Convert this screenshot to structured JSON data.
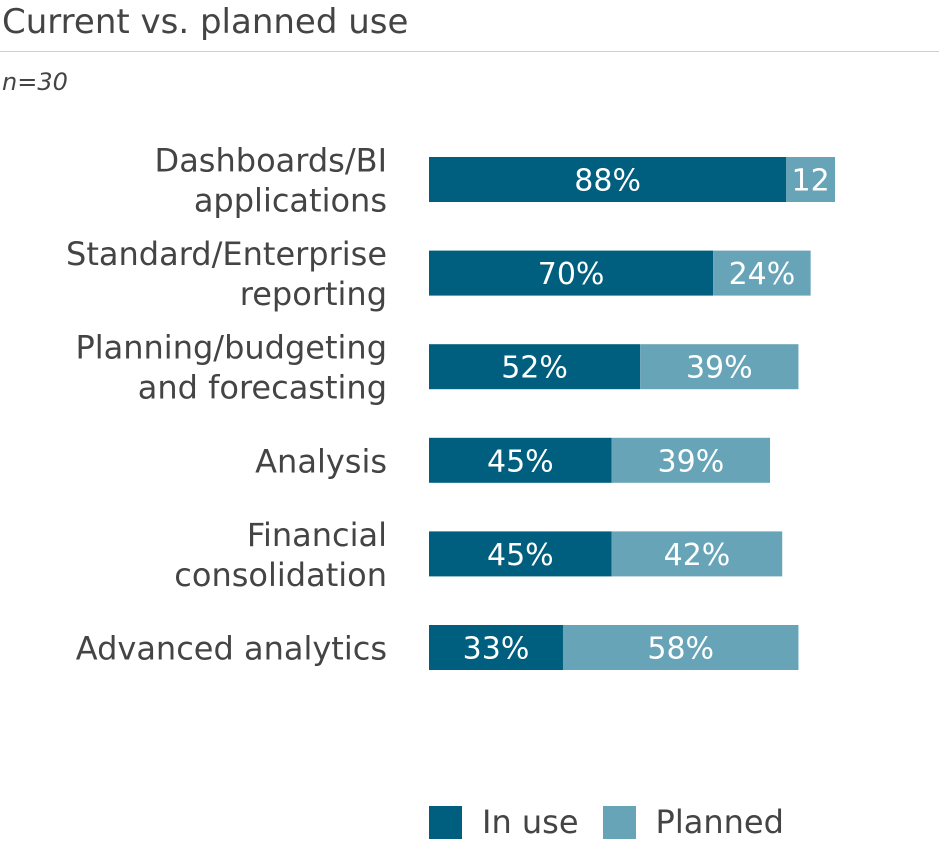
{
  "header": {
    "title": "Current vs. planned use",
    "subtitle": "n=30"
  },
  "colors": {
    "in_use": "#005f7e",
    "planned": "#67a4b8"
  },
  "chart_data": {
    "type": "bar",
    "orientation": "horizontal",
    "stacked": true,
    "title": "Current vs. planned use",
    "subtitle": "n=30",
    "categories": [
      [
        "Dashboards/BI",
        "applications"
      ],
      [
        "Standard/Enterprise",
        "reporting"
      ],
      [
        "Planning/budgeting",
        "and forecasting"
      ],
      [
        "Analysis"
      ],
      [
        "Financial",
        "consolidation"
      ],
      [
        "Advanced analytics"
      ]
    ],
    "series": [
      {
        "name": "In use",
        "values": [
          88,
          70,
          52,
          45,
          45,
          33
        ],
        "labels": [
          "88%",
          "70%",
          "52%",
          "45%",
          "45%",
          "33%"
        ]
      },
      {
        "name": "Planned",
        "values": [
          12,
          24,
          39,
          39,
          42,
          58
        ],
        "labels": [
          "12",
          "24%",
          "39%",
          "39%",
          "42%",
          "58%"
        ]
      }
    ],
    "xlim": [
      0,
      100
    ],
    "grid": false,
    "legend_position": "bottom"
  },
  "legend": {
    "in_use": "In use",
    "planned": "Planned"
  }
}
